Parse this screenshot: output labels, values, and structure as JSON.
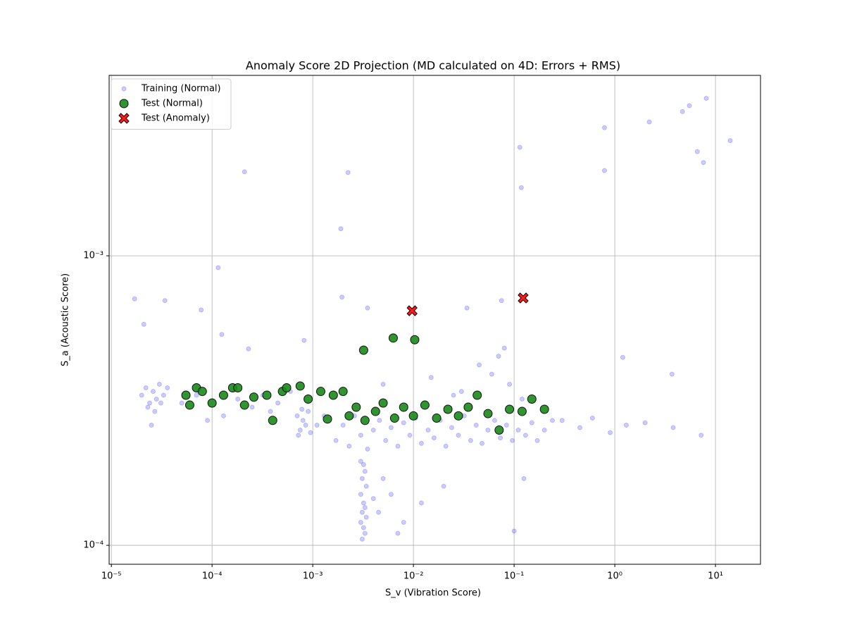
{
  "chart_data": {
    "type": "scatter",
    "title": "Anomaly Score 2D Projection (MD calculated on 4D: Errors + RMS)",
    "x_label": "S_v (Vibration Score)",
    "y_label": "S_a (Acoustic Score)",
    "log_x": true,
    "log_y": true,
    "grid": true,
    "legend": "upper-left",
    "xlim": [
      9.5e-06,
      28
    ],
    "ylim": [
      8.6e-05,
      0.0042
    ],
    "xticks": [
      {
        "value": 1e-05,
        "label": "10⁻⁵"
      },
      {
        "value": 0.0001,
        "label": "10⁻⁴"
      },
      {
        "value": 0.001,
        "label": "10⁻³"
      },
      {
        "value": 0.01,
        "label": "10⁻²"
      },
      {
        "value": 0.1,
        "label": "10⁻¹"
      },
      {
        "value": 1,
        "label": "10⁰"
      },
      {
        "value": 10,
        "label": "10¹"
      }
    ],
    "yticks": [
      {
        "value": 0.0001,
        "label": "10⁻⁴"
      },
      {
        "value": 0.001,
        "label": "10⁻³"
      }
    ],
    "series": [
      {
        "name": "Training (Normal)",
        "color": "#0000ff",
        "edgecolor": "#0000ff",
        "alpha": 0.2,
        "marker": "o",
        "size": 3,
        "x": [
          8.1,
          5.5,
          4.7,
          2.2,
          0.79,
          14,
          0.114,
          6.6,
          7.6,
          0.79,
          0.00021,
          0.00224,
          0.118,
          0.0019,
          0.000115,
          1.7e-05,
          0.00195,
          0.0035,
          0.034,
          0.075,
          3.4e-05,
          2.1e-05,
          7.8e-05,
          0.000125,
          0.00082,
          0.00023,
          1.2,
          3.7,
          0.125,
          0.1,
          2e-05,
          2.2e-05,
          2.4e-05,
          2.6e-05,
          2.8e-05,
          3e-05,
          3.3e-05,
          3.6e-05,
          2.3e-05,
          2.7e-05,
          3.1e-05,
          2.5e-05,
          5e-05,
          7e-05,
          0.00013,
          0.00018,
          0.00025,
          0.00032,
          0.00045,
          0.0006,
          9e-05,
          0.00038,
          0.0007,
          0.00075,
          0.0008,
          0.00085,
          0.0009,
          0.00072,
          0.0011,
          0.0013,
          0.00078,
          0.00095,
          0.0017,
          0.002,
          0.0023,
          0.0026,
          0.003,
          0.0035,
          0.004,
          0.0046,
          0.0053,
          0.006,
          0.007,
          0.008,
          0.0092,
          0.0105,
          0.012,
          0.014,
          0.016,
          0.0185,
          0.021,
          0.024,
          0.028,
          0.032,
          0.037,
          0.042,
          0.048,
          0.055,
          0.064,
          0.073,
          0.084,
          0.096,
          0.11,
          0.13,
          0.15,
          0.17,
          0.2,
          0.24,
          0.005,
          0.015,
          0.03,
          0.045,
          0.06,
          0.08,
          0.09,
          0.025,
          0.12,
          0.07,
          0.0031,
          0.0033,
          0.0032,
          0.003,
          0.0034,
          0.0031,
          0.0033,
          0.0032,
          0.003,
          0.0034,
          0.0031,
          0.0033,
          0.0032,
          0.003,
          0.0045,
          0.006,
          0.008,
          0.005,
          0.012,
          0.02,
          0.007,
          0.004,
          0.3,
          0.45,
          0.6,
          0.9,
          1.3,
          2,
          3.8,
          7.2
        ],
        "values": [
          0.0035,
          0.0033,
          0.00315,
          0.0029,
          0.00277,
          0.0025,
          0.00237,
          0.00229,
          0.0021,
          0.00197,
          0.00195,
          0.00194,
          0.00172,
          0.00124,
          0.00091,
          0.00071,
          0.00072,
          0.00066,
          0.00066,
          0.0007,
          0.0007,
          0.00058,
          0.00065,
          0.000535,
          0.00051,
          0.000477,
          0.000446,
          0.00039,
          0.00017,
          0.000112,
          0.00033,
          0.00035,
          0.00031,
          0.00034,
          0.00032,
          0.00036,
          0.00033,
          0.00035,
          0.0003,
          0.00029,
          0.00031,
          0.00026,
          0.00031,
          0.00033,
          0.00028,
          0.00032,
          0.0003,
          0.00033,
          0.00031,
          0.00034,
          0.00027,
          0.00029,
          0.00028,
          0.00025,
          0.00027,
          0.00026,
          0.00029,
          0.00024,
          0.00026,
          0.00028,
          0.000295,
          0.000245,
          0.00023,
          0.00026,
          0.00022,
          0.00028,
          0.00024,
          0.000215,
          0.00025,
          0.00027,
          0.00023,
          0.000255,
          0.00022,
          0.000265,
          0.00024,
          0.000275,
          0.000225,
          0.00025,
          0.000235,
          0.00027,
          0.00022,
          0.000255,
          0.00024,
          0.00028,
          0.00023,
          0.00026,
          0.000225,
          0.00025,
          0.00027,
          0.000235,
          0.00026,
          0.00023,
          0.00025,
          0.00024,
          0.000265,
          0.00023,
          0.00025,
          0.00027,
          0.00036,
          0.00038,
          0.00034,
          0.00042,
          0.00039,
          0.00048,
          0.00036,
          0.00033,
          0.00032,
          0.00045,
          0.000105,
          0.00011,
          0.000115,
          0.00012,
          0.000125,
          0.00013,
          0.000135,
          0.00014,
          0.00015,
          0.00016,
          0.00017,
          0.00018,
          0.00019,
          0.000195,
          0.00013,
          0.00015,
          0.00012,
          0.00017,
          0.00014,
          0.00016,
          0.00011,
          0.000145,
          0.00027,
          0.000255,
          0.000275,
          0.000245,
          0.00026,
          0.000265,
          0.000255,
          0.00024
        ]
      },
      {
        "name": "Test (Normal)",
        "color": "#1a8a1a",
        "edgecolor": "#000000",
        "alpha": 0.9,
        "marker": "o",
        "size": 6,
        "x": [
          0.0032,
          0.0063,
          0.0103,
          0.0004,
          0.071,
          0.0014,
          5.5e-05,
          6e-05,
          7e-05,
          8e-05,
          0.0001,
          0.00013,
          0.00016,
          0.00018,
          0.00021,
          0.00026,
          0.00035,
          0.0005,
          0.00055,
          0.00075,
          0.0009,
          0.0012,
          0.0016,
          0.002,
          0.0023,
          0.0027,
          0.0033,
          0.0042,
          0.005,
          0.0065,
          0.008,
          0.01,
          0.013,
          0.017,
          0.022,
          0.028,
          0.035,
          0.043,
          0.055,
          0.09,
          0.12,
          0.15,
          0.2
        ],
        "values": [
          0.000472,
          0.00052,
          0.000513,
          0.00027,
          0.00025,
          0.000273,
          0.00033,
          0.000305,
          0.00035,
          0.00034,
          0.00031,
          0.00033,
          0.00035,
          0.00035,
          0.000305,
          0.000325,
          0.00033,
          0.00034,
          0.00035,
          0.000355,
          0.00032,
          0.00034,
          0.00033,
          0.00034,
          0.00028,
          0.0003,
          0.00027,
          0.00029,
          0.00031,
          0.000275,
          0.0003,
          0.00028,
          0.000305,
          0.000275,
          0.000295,
          0.00028,
          0.0003,
          0.00033,
          0.000285,
          0.000295,
          0.00029,
          0.00032,
          0.000295
        ]
      },
      {
        "name": "Test (Anomaly)",
        "color": "#ff0000",
        "edgecolor": "#000000",
        "alpha": 0.9,
        "marker": "X",
        "size": 7,
        "x": [
          0.0097,
          0.123
        ],
        "values": [
          0.000646,
          0.000715
        ]
      }
    ]
  }
}
